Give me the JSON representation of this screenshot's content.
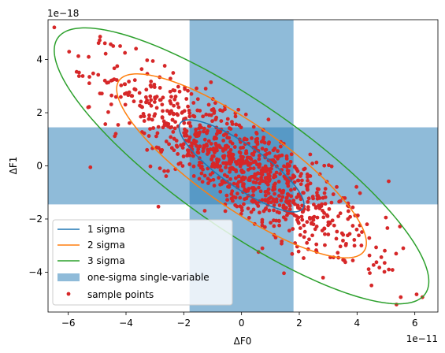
{
  "chart_data": {
    "type": "scatter",
    "xlabel": "ΔF0",
    "ylabel": "ΔF1",
    "x_offset_label": "1e−11",
    "y_offset_label": "1e−18",
    "x_scale": 1e-11,
    "y_scale": 1e-18,
    "xlim": [
      -6.7,
      6.8
    ],
    "ylim": [
      -5.5,
      5.5
    ],
    "xticks": [
      -6,
      -4,
      -2,
      0,
      2,
      4,
      6
    ],
    "yticks": [
      -4,
      -2,
      0,
      2,
      4
    ],
    "grid": false,
    "legend_position": "lower-left",
    "ellipse": {
      "center": [
        0,
        0
      ],
      "semi_major_1sigma": 2.66,
      "semi_minor_1sigma": 0.77,
      "angle_deg": -37.5
    },
    "series": [
      {
        "name": "1 sigma",
        "kind": "ellipse",
        "sigma": 1,
        "color": "#1f77b4"
      },
      {
        "name": "2 sigma",
        "kind": "ellipse",
        "sigma": 2,
        "color": "#ff7f0e"
      },
      {
        "name": "3 sigma",
        "kind": "ellipse",
        "sigma": 3,
        "color": "#2ca02c"
      },
      {
        "name": "one-sigma single-variable",
        "kind": "band",
        "x_range": [
          -1.8,
          1.8
        ],
        "y_range": [
          -1.45,
          1.45
        ],
        "color": "#1f77b4",
        "alpha": 0.5
      },
      {
        "name": "sample points",
        "kind": "points",
        "color": "#d62728",
        "count": 1000,
        "extreme_points": [
          [
            -4.95,
            4.62
          ],
          [
            -5.5,
            3.38
          ],
          [
            5.6,
            -3.1
          ],
          [
            5.1,
            -3.9
          ],
          [
            4.5,
            -4.5
          ]
        ]
      }
    ]
  }
}
